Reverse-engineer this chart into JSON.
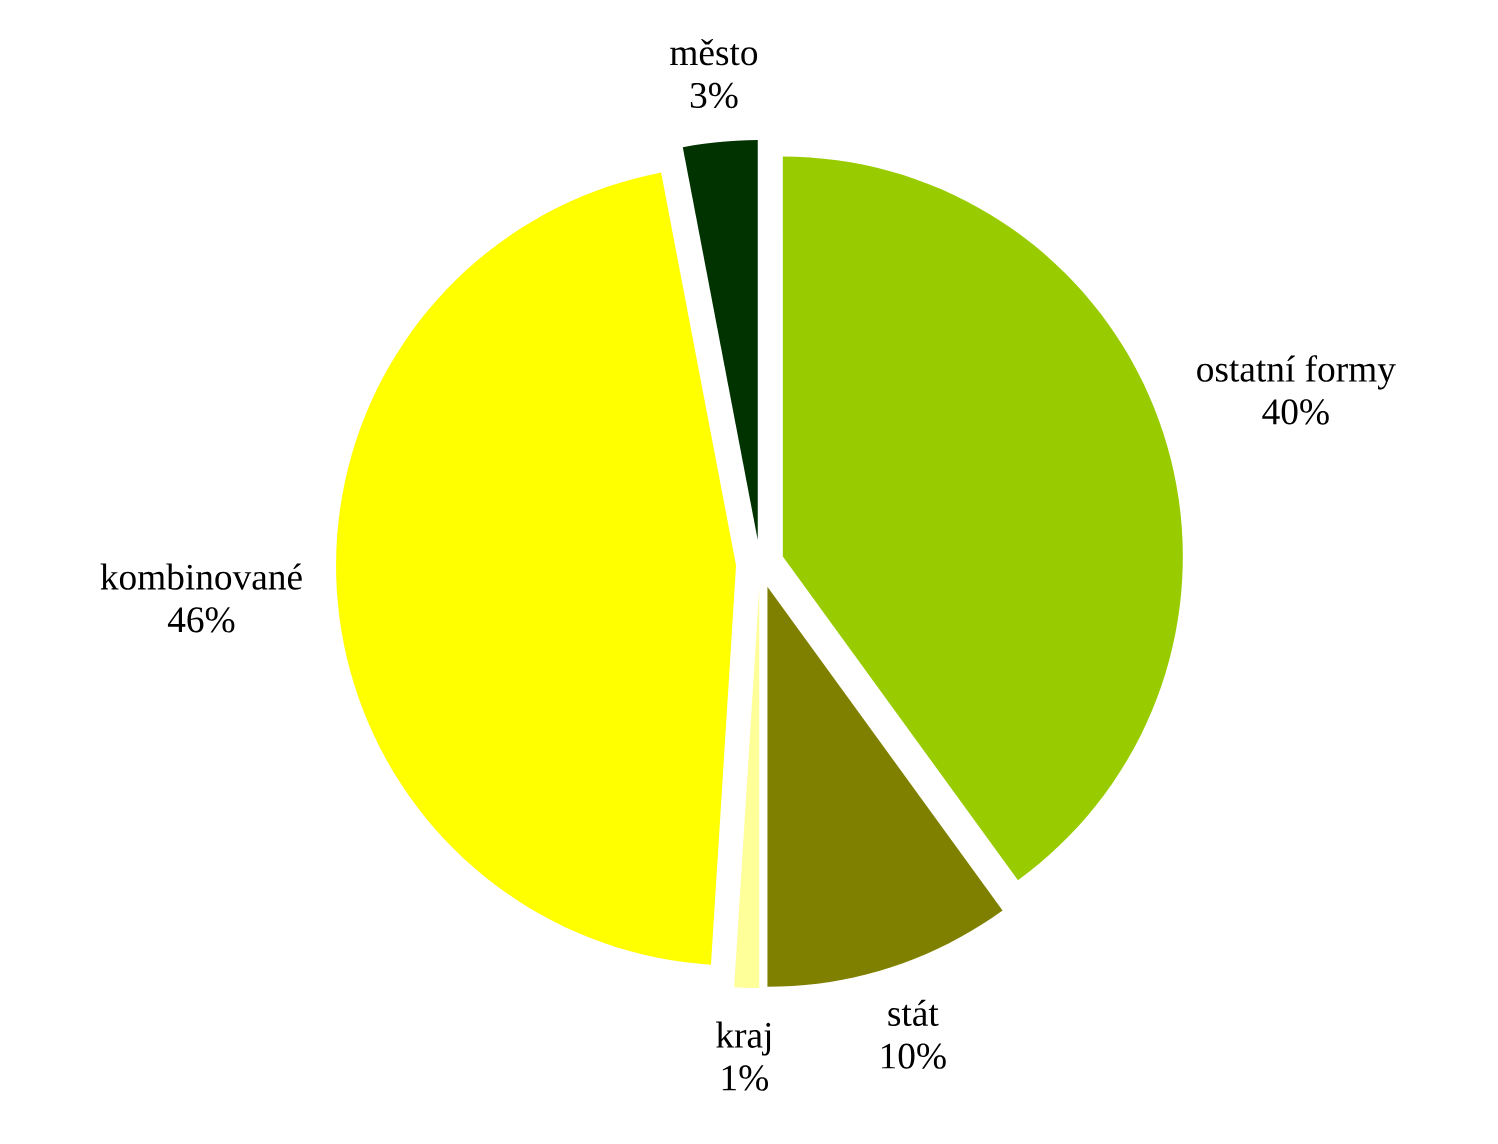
{
  "chart_data": {
    "type": "pie",
    "categories": [
      "ostatní formy",
      "stát",
      "kraj",
      "kombinované",
      "město"
    ],
    "values": [
      40,
      10,
      1,
      46,
      3
    ],
    "value_labels": [
      "40%",
      "10%",
      "1%",
      "46%",
      "3%"
    ],
    "colors": [
      "#99cc00",
      "#808000",
      "#ffff99",
      "#ffff00",
      "#003300"
    ]
  }
}
